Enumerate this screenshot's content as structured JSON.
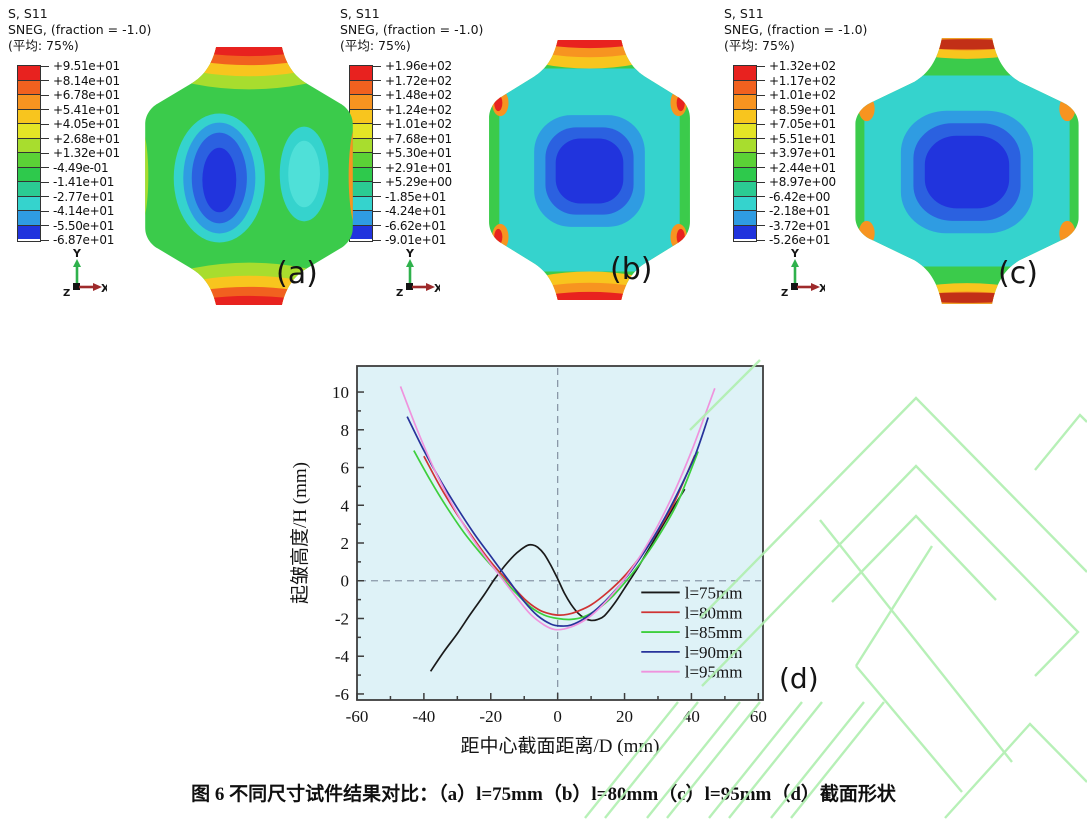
{
  "panels": [
    {
      "id": "a",
      "label": "(a)",
      "legend": {
        "line1": "S, S11",
        "line2": "SNEG, (fraction = -1.0)",
        "line3": "(平均: 75%)"
      },
      "values": [
        "+9.51e+01",
        "+8.14e+01",
        "+6.78e+01",
        "+5.41e+01",
        "+4.05e+01",
        "+2.68e+01",
        "+1.32e+01",
        "-4.49e-01",
        "-1.41e+01",
        "-2.77e+01",
        "-4.14e+01",
        "-5.50e+01",
        "-6.87e+01"
      ]
    },
    {
      "id": "b",
      "label": "(b)",
      "legend": {
        "line1": "S, S11",
        "line2": "SNEG, (fraction = -1.0)",
        "line3": "(平均: 75%)"
      },
      "values": [
        "+1.96e+02",
        "+1.72e+02",
        "+1.48e+02",
        "+1.24e+02",
        "+1.01e+02",
        "+7.68e+01",
        "+5.30e+01",
        "+2.91e+01",
        "+5.29e+00",
        "-1.85e+01",
        "-4.24e+01",
        "-6.62e+01",
        "-9.01e+01"
      ]
    },
    {
      "id": "c",
      "label": "(c)",
      "legend": {
        "line1": "S, S11",
        "line2": "SNEG, (fraction = -1.0)",
        "line3": "(平均: 75%)"
      },
      "values": [
        "+1.32e+02",
        "+1.17e+02",
        "+1.01e+02",
        "+8.59e+01",
        "+7.05e+01",
        "+5.51e+01",
        "+3.97e+01",
        "+2.44e+01",
        "+8.97e+00",
        "-6.42e+00",
        "-2.18e+01",
        "-3.72e+01",
        "-5.26e+01"
      ]
    }
  ],
  "colorbar": {
    "colors": [
      "#e8221f",
      "#f1611f",
      "#f79420",
      "#f8c51e",
      "#e4e426",
      "#a8dd2e",
      "#5bd136",
      "#2ec94c",
      "#2bcb92",
      "#35d3cd",
      "#2f9ce2",
      "#2134dd"
    ]
  },
  "triad": {
    "x": "X",
    "y": "Y",
    "z": "Z"
  },
  "chart_data": {
    "type": "line",
    "panel_label": "(d)",
    "xlabel": "距中心截面距离/D (mm)",
    "ylabel": "起皱高度/H (mm)",
    "xlim": [
      -60,
      60
    ],
    "ylim": [
      -6,
      10
    ],
    "xticks": [
      -60,
      -40,
      -20,
      0,
      20,
      40,
      60
    ],
    "yticks": [
      -6,
      -4,
      -2,
      0,
      2,
      4,
      6,
      8,
      10
    ],
    "grid": false,
    "crosshair": {
      "x": 0,
      "y": 0,
      "style": "dashed"
    },
    "legend_position": "lower right",
    "plot_bg": "#def2f7",
    "series": [
      {
        "name": "l=75mm",
        "color": "#1a1a1a",
        "points": [
          [
            -38,
            -4.8
          ],
          [
            -34,
            -3.75
          ],
          [
            -30,
            -2.8
          ],
          [
            -26,
            -1.75
          ],
          [
            -22,
            -0.75
          ],
          [
            -19,
            0.05
          ],
          [
            -16,
            0.75
          ],
          [
            -13,
            1.35
          ],
          [
            -11,
            1.65
          ],
          [
            -9,
            1.88
          ],
          [
            -7.5,
            1.9
          ],
          [
            -6,
            1.78
          ],
          [
            -4,
            1.4
          ],
          [
            -2,
            0.8
          ],
          [
            0,
            0.1
          ],
          [
            2,
            -0.65
          ],
          [
            4,
            -1.25
          ],
          [
            6,
            -1.7
          ],
          [
            8,
            -1.98
          ],
          [
            10,
            -2.1
          ],
          [
            12,
            -2.05
          ],
          [
            14,
            -1.85
          ],
          [
            17,
            -1.2
          ],
          [
            20,
            -0.4
          ],
          [
            24,
            0.7
          ],
          [
            28,
            1.9
          ],
          [
            32,
            3.1
          ],
          [
            35,
            4.0
          ],
          [
            38,
            4.85
          ]
        ]
      },
      {
        "name": "l=80mm",
        "color": "#cf3333",
        "points": [
          [
            -40,
            6.6
          ],
          [
            -35,
            4.95
          ],
          [
            -30,
            3.5
          ],
          [
            -25,
            2.2
          ],
          [
            -20,
            1.0
          ],
          [
            -15,
            0.0
          ],
          [
            -10,
            -0.95
          ],
          [
            -6,
            -1.5
          ],
          [
            -3,
            -1.72
          ],
          [
            0,
            -1.82
          ],
          [
            3,
            -1.78
          ],
          [
            6,
            -1.62
          ],
          [
            10,
            -1.28
          ],
          [
            15,
            -0.6
          ],
          [
            20,
            0.25
          ],
          [
            25,
            1.35
          ],
          [
            30,
            2.65
          ],
          [
            35,
            4.2
          ],
          [
            41,
            6.65
          ]
        ]
      },
      {
        "name": "l=85mm",
        "color": "#3dcf3d",
        "points": [
          [
            -43,
            6.9
          ],
          [
            -38,
            5.3
          ],
          [
            -33,
            3.85
          ],
          [
            -28,
            2.55
          ],
          [
            -23,
            1.45
          ],
          [
            -18,
            0.45
          ],
          [
            -13,
            -0.55
          ],
          [
            -8,
            -1.4
          ],
          [
            -4,
            -1.82
          ],
          [
            0,
            -2.0
          ],
          [
            4,
            -2.05
          ],
          [
            8,
            -1.9
          ],
          [
            12,
            -1.5
          ],
          [
            16,
            -0.9
          ],
          [
            21,
            0.1
          ],
          [
            26,
            1.25
          ],
          [
            31,
            2.6
          ],
          [
            36,
            4.2
          ],
          [
            42,
            6.85
          ]
        ]
      },
      {
        "name": "l=90mm",
        "color": "#27339b",
        "points": [
          [
            -45,
            8.7
          ],
          [
            -40,
            6.9
          ],
          [
            -35,
            5.3
          ],
          [
            -30,
            3.85
          ],
          [
            -25,
            2.5
          ],
          [
            -20,
            1.3
          ],
          [
            -15,
            0.1
          ],
          [
            -10,
            -1.1
          ],
          [
            -6,
            -1.85
          ],
          [
            -2,
            -2.3
          ],
          [
            1,
            -2.4
          ],
          [
            4,
            -2.35
          ],
          [
            8,
            -2.0
          ],
          [
            12,
            -1.45
          ],
          [
            16,
            -0.75
          ],
          [
            21,
            0.3
          ],
          [
            26,
            1.55
          ],
          [
            31,
            3.0
          ],
          [
            36,
            4.7
          ],
          [
            41,
            6.6
          ],
          [
            45,
            8.65
          ]
        ]
      },
      {
        "name": "l=95mm",
        "color": "#ef93dd",
        "points": [
          [
            -47,
            10.3
          ],
          [
            -42,
            8.0
          ],
          [
            -37,
            5.95
          ],
          [
            -32,
            4.2
          ],
          [
            -27,
            2.65
          ],
          [
            -22,
            1.35
          ],
          [
            -17,
            0.2
          ],
          [
            -12,
            -0.95
          ],
          [
            -8,
            -1.8
          ],
          [
            -4,
            -2.35
          ],
          [
            -1,
            -2.58
          ],
          [
            2,
            -2.55
          ],
          [
            6,
            -2.3
          ],
          [
            10,
            -1.85
          ],
          [
            15,
            -1.0
          ],
          [
            20,
            0.1
          ],
          [
            25,
            1.4
          ],
          [
            30,
            2.95
          ],
          [
            35,
            4.75
          ],
          [
            40,
            6.85
          ],
          [
            44,
            8.75
          ],
          [
            47,
            10.2
          ]
        ]
      }
    ]
  },
  "colors": {
    "watermark": "#b0efb0",
    "frame": "#3d3d3d",
    "dashed": "#8a98a8"
  },
  "caption": "图 6 不同尺寸试件结果对比：（a）l=75mm（b）l=80mm（c）l=95mm（d）截面形状"
}
